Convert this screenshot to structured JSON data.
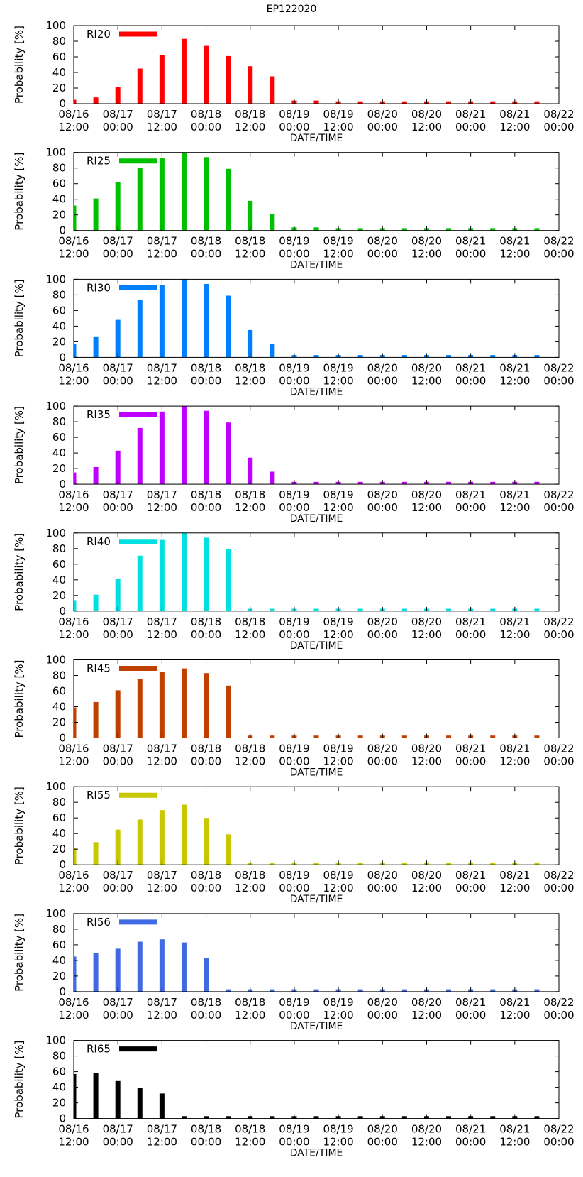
{
  "page_title": "EP122020",
  "chart_data": [
    {
      "type": "bar",
      "title": "EP122020",
      "legend": "RI20",
      "color": "#ff0000",
      "xlabel": "DATE/TIME",
      "ylabel": "Probability [%]",
      "ylim": [
        0,
        100
      ],
      "yticks": [
        0,
        20,
        40,
        60,
        80,
        100
      ],
      "xticks": [
        {
          "date": "08/16",
          "time": "12:00"
        },
        {
          "date": "08/17",
          "time": "00:00"
        },
        {
          "date": "08/17",
          "time": "12:00"
        },
        {
          "date": "08/18",
          "time": "00:00"
        },
        {
          "date": "08/18",
          "time": "12:00"
        },
        {
          "date": "08/19",
          "time": "00:00"
        },
        {
          "date": "08/19",
          "time": "12:00"
        },
        {
          "date": "08/20",
          "time": "00:00"
        },
        {
          "date": "08/20",
          "time": "12:00"
        },
        {
          "date": "08/21",
          "time": "00:00"
        },
        {
          "date": "08/21",
          "time": "12:00"
        },
        {
          "date": "08/22",
          "time": "00:00"
        }
      ],
      "x_hours": [
        0,
        6,
        12,
        18,
        24,
        30,
        36,
        42,
        48,
        54,
        60,
        66,
        72,
        78,
        84,
        90,
        96,
        102,
        108,
        114,
        120,
        126
      ],
      "values": [
        5,
        8,
        21,
        45,
        62,
        83,
        74,
        61,
        48,
        35,
        4,
        4,
        3,
        3,
        3,
        3,
        3,
        3,
        3,
        3,
        3,
        3
      ]
    },
    {
      "type": "bar",
      "legend": "RI25",
      "color": "#00c000",
      "xlabel": "DATE/TIME",
      "ylabel": "Probability [%]",
      "ylim": [
        0,
        100
      ],
      "yticks": [
        0,
        20,
        40,
        60,
        80,
        100
      ],
      "xticks": [
        {
          "date": "08/16",
          "time": "12:00"
        },
        {
          "date": "08/17",
          "time": "00:00"
        },
        {
          "date": "08/17",
          "time": "12:00"
        },
        {
          "date": "08/18",
          "time": "00:00"
        },
        {
          "date": "08/18",
          "time": "12:00"
        },
        {
          "date": "08/19",
          "time": "00:00"
        },
        {
          "date": "08/19",
          "time": "12:00"
        },
        {
          "date": "08/20",
          "time": "00:00"
        },
        {
          "date": "08/20",
          "time": "12:00"
        },
        {
          "date": "08/21",
          "time": "00:00"
        },
        {
          "date": "08/21",
          "time": "12:00"
        },
        {
          "date": "08/22",
          "time": "00:00"
        }
      ],
      "x_hours": [
        0,
        6,
        12,
        18,
        24,
        30,
        36,
        42,
        48,
        54,
        60,
        66,
        72,
        78,
        84,
        90,
        96,
        102,
        108,
        114,
        120,
        126
      ],
      "values": [
        32,
        41,
        62,
        80,
        93,
        100,
        94,
        79,
        38,
        21,
        4,
        4,
        3,
        3,
        3,
        3,
        3,
        3,
        3,
        3,
        3,
        3
      ]
    },
    {
      "type": "bar",
      "legend": "RI30",
      "color": "#0080ff",
      "xlabel": "DATE/TIME",
      "ylabel": "Probability [%]",
      "ylim": [
        0,
        100
      ],
      "yticks": [
        0,
        20,
        40,
        60,
        80,
        100
      ],
      "xticks": [
        {
          "date": "08/16",
          "time": "12:00"
        },
        {
          "date": "08/17",
          "time": "00:00"
        },
        {
          "date": "08/17",
          "time": "12:00"
        },
        {
          "date": "08/18",
          "time": "00:00"
        },
        {
          "date": "08/18",
          "time": "12:00"
        },
        {
          "date": "08/19",
          "time": "00:00"
        },
        {
          "date": "08/19",
          "time": "12:00"
        },
        {
          "date": "08/20",
          "time": "00:00"
        },
        {
          "date": "08/20",
          "time": "12:00"
        },
        {
          "date": "08/21",
          "time": "00:00"
        },
        {
          "date": "08/21",
          "time": "12:00"
        },
        {
          "date": "08/22",
          "time": "00:00"
        }
      ],
      "x_hours": [
        0,
        6,
        12,
        18,
        24,
        30,
        36,
        42,
        48,
        54,
        60,
        66,
        72,
        78,
        84,
        90,
        96,
        102,
        108,
        114,
        120,
        126
      ],
      "values": [
        17,
        26,
        48,
        74,
        93,
        100,
        94,
        79,
        35,
        17,
        3,
        3,
        3,
        3,
        3,
        3,
        3,
        3,
        3,
        3,
        3,
        3
      ]
    },
    {
      "type": "bar",
      "legend": "RI35",
      "color": "#c000ff",
      "xlabel": "DATE/TIME",
      "ylabel": "Probability [%]",
      "ylim": [
        0,
        100
      ],
      "yticks": [
        0,
        20,
        40,
        60,
        80,
        100
      ],
      "xticks": [
        {
          "date": "08/16",
          "time": "12:00"
        },
        {
          "date": "08/17",
          "time": "00:00"
        },
        {
          "date": "08/17",
          "time": "12:00"
        },
        {
          "date": "08/18",
          "time": "00:00"
        },
        {
          "date": "08/18",
          "time": "12:00"
        },
        {
          "date": "08/19",
          "time": "00:00"
        },
        {
          "date": "08/19",
          "time": "12:00"
        },
        {
          "date": "08/20",
          "time": "00:00"
        },
        {
          "date": "08/20",
          "time": "12:00"
        },
        {
          "date": "08/21",
          "time": "00:00"
        },
        {
          "date": "08/21",
          "time": "12:00"
        },
        {
          "date": "08/22",
          "time": "00:00"
        }
      ],
      "x_hours": [
        0,
        6,
        12,
        18,
        24,
        30,
        36,
        42,
        48,
        54,
        60,
        66,
        72,
        78,
        84,
        90,
        96,
        102,
        108,
        114,
        120,
        126
      ],
      "values": [
        15,
        22,
        43,
        72,
        93,
        100,
        94,
        79,
        34,
        16,
        3,
        3,
        3,
        3,
        3,
        3,
        3,
        3,
        3,
        3,
        3,
        3
      ]
    },
    {
      "type": "bar",
      "legend": "RI40",
      "color": "#00e0e0",
      "xlabel": "DATE/TIME",
      "ylabel": "Probability [%]",
      "ylim": [
        0,
        100
      ],
      "yticks": [
        0,
        20,
        40,
        60,
        80,
        100
      ],
      "xticks": [
        {
          "date": "08/16",
          "time": "12:00"
        },
        {
          "date": "08/17",
          "time": "00:00"
        },
        {
          "date": "08/17",
          "time": "12:00"
        },
        {
          "date": "08/18",
          "time": "00:00"
        },
        {
          "date": "08/18",
          "time": "12:00"
        },
        {
          "date": "08/19",
          "time": "00:00"
        },
        {
          "date": "08/19",
          "time": "12:00"
        },
        {
          "date": "08/20",
          "time": "00:00"
        },
        {
          "date": "08/20",
          "time": "12:00"
        },
        {
          "date": "08/21",
          "time": "00:00"
        },
        {
          "date": "08/21",
          "time": "12:00"
        },
        {
          "date": "08/22",
          "time": "00:00"
        }
      ],
      "x_hours": [
        0,
        6,
        12,
        18,
        24,
        30,
        36,
        42,
        48,
        54,
        60,
        66,
        72,
        78,
        84,
        90,
        96,
        102,
        108,
        114,
        120,
        126
      ],
      "values": [
        14,
        21,
        41,
        71,
        92,
        100,
        94,
        79,
        3,
        3,
        3,
        3,
        3,
        3,
        3,
        3,
        3,
        3,
        3,
        3,
        3,
        3
      ]
    },
    {
      "type": "bar",
      "legend": "RI45",
      "color": "#c04000",
      "xlabel": "DATE/TIME",
      "ylabel": "Probability [%]",
      "ylim": [
        0,
        100
      ],
      "yticks": [
        0,
        20,
        40,
        60,
        80,
        100
      ],
      "xticks": [
        {
          "date": "08/16",
          "time": "12:00"
        },
        {
          "date": "08/17",
          "time": "00:00"
        },
        {
          "date": "08/17",
          "time": "12:00"
        },
        {
          "date": "08/18",
          "time": "00:00"
        },
        {
          "date": "08/18",
          "time": "12:00"
        },
        {
          "date": "08/19",
          "time": "00:00"
        },
        {
          "date": "08/19",
          "time": "12:00"
        },
        {
          "date": "08/20",
          "time": "00:00"
        },
        {
          "date": "08/20",
          "time": "12:00"
        },
        {
          "date": "08/21",
          "time": "00:00"
        },
        {
          "date": "08/21",
          "time": "12:00"
        },
        {
          "date": "08/22",
          "time": "00:00"
        }
      ],
      "x_hours": [
        0,
        6,
        12,
        18,
        24,
        30,
        36,
        42,
        48,
        54,
        60,
        66,
        72,
        78,
        84,
        90,
        96,
        102,
        108,
        114,
        120,
        126
      ],
      "values": [
        39,
        46,
        61,
        75,
        85,
        89,
        83,
        67,
        3,
        3,
        3,
        3,
        3,
        3,
        3,
        3,
        3,
        3,
        3,
        3,
        3,
        3
      ]
    },
    {
      "type": "bar",
      "legend": "RI55",
      "color": "#c8c800",
      "xlabel": "DATE/TIME",
      "ylabel": "Probability [%]",
      "ylim": [
        0,
        100
      ],
      "yticks": [
        0,
        20,
        40,
        60,
        80,
        100
      ],
      "xticks": [
        {
          "date": "08/16",
          "time": "12:00"
        },
        {
          "date": "08/17",
          "time": "00:00"
        },
        {
          "date": "08/17",
          "time": "12:00"
        },
        {
          "date": "08/18",
          "time": "00:00"
        },
        {
          "date": "08/18",
          "time": "12:00"
        },
        {
          "date": "08/19",
          "time": "00:00"
        },
        {
          "date": "08/19",
          "time": "12:00"
        },
        {
          "date": "08/20",
          "time": "00:00"
        },
        {
          "date": "08/20",
          "time": "12:00"
        },
        {
          "date": "08/21",
          "time": "00:00"
        },
        {
          "date": "08/21",
          "time": "12:00"
        },
        {
          "date": "08/22",
          "time": "00:00"
        }
      ],
      "x_hours": [
        0,
        6,
        12,
        18,
        24,
        30,
        36,
        42,
        48,
        54,
        60,
        66,
        72,
        78,
        84,
        90,
        96,
        102,
        108,
        114,
        120,
        126
      ],
      "values": [
        22,
        29,
        45,
        58,
        70,
        77,
        60,
        39,
        3,
        3,
        3,
        3,
        3,
        3,
        3,
        3,
        3,
        3,
        3,
        3,
        3,
        3
      ]
    },
    {
      "type": "bar",
      "legend": "RI56",
      "color": "#4169e1",
      "xlabel": "DATE/TIME",
      "ylabel": "Probability [%]",
      "ylim": [
        0,
        100
      ],
      "yticks": [
        0,
        20,
        40,
        60,
        80,
        100
      ],
      "xticks": [
        {
          "date": "08/16",
          "time": "12:00"
        },
        {
          "date": "08/17",
          "time": "00:00"
        },
        {
          "date": "08/17",
          "time": "12:00"
        },
        {
          "date": "08/18",
          "time": "00:00"
        },
        {
          "date": "08/18",
          "time": "12:00"
        },
        {
          "date": "08/19",
          "time": "00:00"
        },
        {
          "date": "08/19",
          "time": "12:00"
        },
        {
          "date": "08/20",
          "time": "00:00"
        },
        {
          "date": "08/20",
          "time": "12:00"
        },
        {
          "date": "08/21",
          "time": "00:00"
        },
        {
          "date": "08/21",
          "time": "12:00"
        },
        {
          "date": "08/22",
          "time": "00:00"
        }
      ],
      "x_hours": [
        0,
        6,
        12,
        18,
        24,
        30,
        36,
        42,
        48,
        54,
        60,
        66,
        72,
        78,
        84,
        90,
        96,
        102,
        108,
        114,
        120,
        126
      ],
      "values": [
        45,
        49,
        55,
        64,
        67,
        63,
        43,
        3,
        3,
        3,
        3,
        3,
        3,
        3,
        3,
        3,
        3,
        3,
        3,
        3,
        3,
        3
      ]
    },
    {
      "type": "bar",
      "legend": "RI65",
      "color": "#000000",
      "xlabel": "DATE/TIME",
      "ylabel": "Probability [%]",
      "ylim": [
        0,
        100
      ],
      "yticks": [
        0,
        20,
        40,
        60,
        80,
        100
      ],
      "xticks": [
        {
          "date": "08/16",
          "time": "12:00"
        },
        {
          "date": "08/17",
          "time": "00:00"
        },
        {
          "date": "08/17",
          "time": "12:00"
        },
        {
          "date": "08/18",
          "time": "00:00"
        },
        {
          "date": "08/18",
          "time": "12:00"
        },
        {
          "date": "08/19",
          "time": "00:00"
        },
        {
          "date": "08/19",
          "time": "12:00"
        },
        {
          "date": "08/20",
          "time": "00:00"
        },
        {
          "date": "08/20",
          "time": "12:00"
        },
        {
          "date": "08/21",
          "time": "00:00"
        },
        {
          "date": "08/21",
          "time": "12:00"
        },
        {
          "date": "08/22",
          "time": "00:00"
        }
      ],
      "x_hours": [
        0,
        6,
        12,
        18,
        24,
        30,
        36,
        42,
        48,
        54,
        60,
        66,
        72,
        78,
        84,
        90,
        96,
        102,
        108,
        114,
        120,
        126
      ],
      "values": [
        57,
        58,
        48,
        39,
        32,
        3,
        3,
        3,
        3,
        3,
        3,
        3,
        3,
        3,
        3,
        3,
        3,
        3,
        3,
        3,
        3,
        3
      ]
    }
  ]
}
